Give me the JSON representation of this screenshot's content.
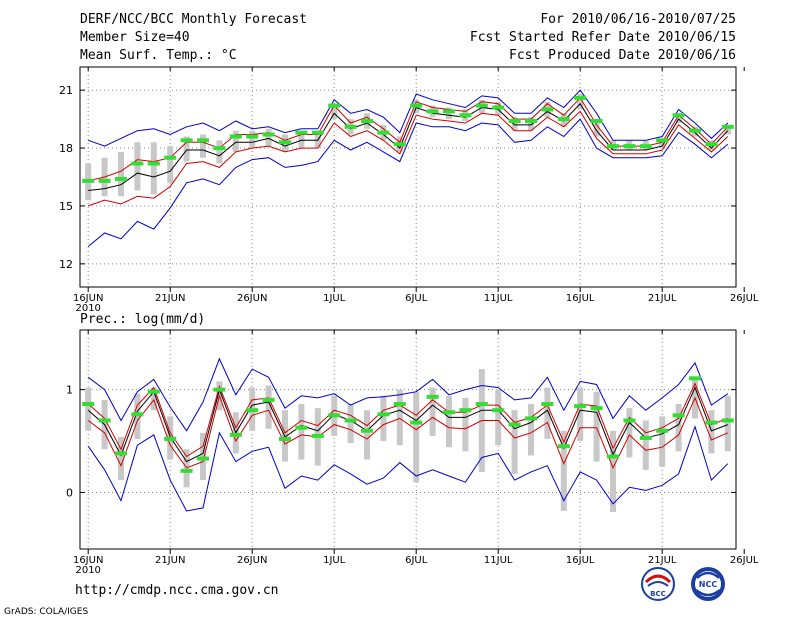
{
  "header": {
    "title": "DERF/NCC/BCC Monthly Forecast",
    "member_size": "Member Size=40",
    "variable": "Mean Surf. Temp.: °C",
    "period": "For 2010/06/16-2010/07/25",
    "started": "Fcst Started Refer Date 2010/06/15",
    "produced": "Fcst Produced Date 2010/06/16"
  },
  "footer": {
    "url": "http://cmdp.ncc.cma.gov.cn",
    "credit": "GrADS: COLA/IGES",
    "logo_bcc_text": "BCC",
    "logo_ncc_text": "NCC"
  },
  "colors": {
    "ensemble_mean": "#000000",
    "bounds_inner": "#d00000",
    "bounds_outer": "#0000cc",
    "spread_bar": "#c8c8c8",
    "member_mark": "#33dd33",
    "grid": "#888888"
  },
  "chart_data": [
    {
      "type": "line",
      "title": "Mean Surf. Temp.: °C",
      "xlabel": "",
      "ylabel": "°C",
      "ylim": [
        10.8,
        22.2
      ],
      "yticks": [
        12,
        15,
        18,
        21
      ],
      "xlim": [
        0.5,
        40.5
      ],
      "xticks": [
        {
          "day": 1,
          "label": "16JUN",
          "sub": "2010"
        },
        {
          "day": 6,
          "label": "21JUN"
        },
        {
          "day": 11,
          "label": "26JUN"
        },
        {
          "day": 16,
          "label": "1JUL"
        },
        {
          "day": 21,
          "label": "6JUL"
        },
        {
          "day": 26,
          "label": "11JUL"
        },
        {
          "day": 31,
          "label": "16JUL"
        },
        {
          "day": 36,
          "label": "21JUL"
        },
        {
          "day": 41,
          "label": "26JUL"
        }
      ],
      "x": [
        1,
        2,
        3,
        4,
        5,
        6,
        7,
        8,
        9,
        10,
        11,
        12,
        13,
        14,
        15,
        16,
        17,
        18,
        19,
        20,
        21,
        22,
        23,
        24,
        25,
        26,
        27,
        28,
        29,
        30,
        31,
        32,
        33,
        34,
        35,
        36,
        37,
        38,
        39,
        40
      ],
      "series": [
        {
          "name": "mean",
          "values": [
            15.8,
            15.9,
            16.1,
            16.7,
            16.5,
            16.8,
            17.9,
            17.9,
            17.6,
            18.3,
            18.3,
            18.5,
            18.1,
            18.4,
            18.4,
            19.8,
            19.0,
            19.3,
            18.7,
            18.0,
            20.1,
            19.8,
            19.7,
            19.6,
            20.1,
            20.0,
            19.2,
            19.2,
            19.9,
            19.4,
            20.3,
            18.9,
            17.9,
            17.9,
            17.9,
            18.1,
            19.5,
            18.8,
            18.0,
            18.9
          ]
        },
        {
          "name": "upper_inner",
          "values": [
            16.3,
            16.5,
            16.8,
            17.4,
            17.3,
            17.5,
            18.3,
            18.3,
            18.0,
            18.7,
            18.7,
            18.8,
            18.4,
            18.7,
            18.7,
            20.2,
            19.3,
            19.6,
            19.0,
            18.3,
            20.4,
            20.1,
            20.0,
            19.9,
            20.4,
            20.3,
            19.5,
            19.5,
            20.3,
            19.7,
            20.6,
            19.2,
            18.1,
            18.1,
            18.1,
            18.3,
            19.7,
            19.0,
            18.2,
            19.1
          ]
        },
        {
          "name": "lower_inner",
          "values": [
            15.0,
            15.3,
            15.1,
            15.5,
            15.4,
            16.0,
            17.2,
            17.3,
            17.0,
            17.8,
            18.0,
            18.1,
            17.8,
            18.0,
            18.0,
            19.3,
            18.6,
            18.9,
            18.4,
            17.7,
            19.7,
            19.5,
            19.4,
            19.3,
            19.8,
            19.7,
            18.9,
            18.9,
            19.6,
            19.1,
            19.9,
            18.5,
            17.7,
            17.7,
            17.7,
            17.9,
            19.2,
            18.5,
            17.8,
            18.6
          ]
        },
        {
          "name": "upper_outer",
          "values": [
            18.4,
            18.1,
            18.5,
            18.9,
            19.0,
            18.7,
            19.1,
            19.3,
            18.9,
            19.4,
            19.0,
            19.1,
            18.8,
            19.0,
            19.0,
            20.5,
            19.8,
            20.0,
            19.6,
            18.8,
            20.8,
            20.5,
            20.3,
            20.1,
            20.7,
            20.6,
            19.8,
            19.8,
            20.6,
            20.1,
            21.0,
            19.8,
            18.4,
            18.4,
            18.4,
            18.6,
            20.0,
            19.3,
            18.5,
            19.3
          ]
        },
        {
          "name": "lower_outer",
          "values": [
            12.9,
            13.6,
            13.3,
            14.2,
            13.8,
            14.9,
            16.2,
            16.4,
            16.1,
            17.0,
            17.4,
            17.5,
            17.0,
            17.1,
            17.3,
            18.4,
            17.9,
            18.3,
            17.8,
            17.3,
            19.3,
            19.1,
            19.1,
            18.9,
            19.3,
            19.2,
            18.3,
            18.4,
            19.1,
            18.6,
            19.5,
            18.0,
            17.5,
            17.5,
            17.5,
            17.6,
            18.8,
            18.2,
            17.5,
            18.2
          ]
        }
      ],
      "spread_bars": {
        "low": [
          15.3,
          15.5,
          15.5,
          15.8,
          15.6,
          16.2,
          17.3,
          17.5,
          17.2,
          17.8,
          18.0,
          18.1,
          17.8,
          18.0,
          18.0,
          19.5,
          18.7,
          19.0,
          18.4,
          17.8,
          19.8,
          19.6,
          19.5,
          19.4,
          19.8,
          19.7,
          18.9,
          18.9,
          19.6,
          19.1,
          20.0,
          18.6,
          17.9,
          17.9,
          17.9,
          18.0,
          19.3,
          18.6,
          17.9,
          18.7
        ],
        "high": [
          17.2,
          17.5,
          17.8,
          18.3,
          18.3,
          18.1,
          18.6,
          18.7,
          18.4,
          18.9,
          18.9,
          19.0,
          18.7,
          18.9,
          18.9,
          20.3,
          19.5,
          19.8,
          19.2,
          18.6,
          20.5,
          20.2,
          20.1,
          20.0,
          20.5,
          20.4,
          19.6,
          19.6,
          20.4,
          19.8,
          20.8,
          19.4,
          18.4,
          18.4,
          18.4,
          18.5,
          19.8,
          19.1,
          18.4,
          19.2
        ]
      },
      "markers": [
        16.3,
        16.3,
        16.4,
        17.2,
        17.2,
        17.5,
        18.4,
        18.4,
        18.0,
        18.6,
        18.6,
        18.7,
        18.3,
        18.8,
        18.8,
        20.2,
        19.1,
        19.4,
        18.8,
        18.2,
        20.2,
        19.9,
        19.9,
        19.7,
        20.2,
        20.1,
        19.4,
        19.4,
        20.0,
        19.5,
        20.6,
        19.4,
        18.1,
        18.1,
        18.1,
        18.4,
        19.7,
        18.9,
        18.2,
        19.1
      ]
    },
    {
      "type": "line",
      "title": "Prec.: log(mm/d)",
      "xlabel": "",
      "ylabel": "log(mm/d)",
      "ylim": [
        -0.55,
        1.58
      ],
      "yticks": [
        0,
        1
      ],
      "xlim": [
        0.5,
        40.5
      ],
      "xticks": [
        {
          "day": 1,
          "label": "16JUN",
          "sub": "2010"
        },
        {
          "day": 6,
          "label": "21JUN"
        },
        {
          "day": 11,
          "label": "26JUN"
        },
        {
          "day": 16,
          "label": "1JUL"
        },
        {
          "day": 21,
          "label": "6JUL"
        },
        {
          "day": 26,
          "label": "11JUL"
        },
        {
          "day": 31,
          "label": "16JUL"
        },
        {
          "day": 36,
          "label": "21JUL"
        },
        {
          "day": 41,
          "label": "26JUL"
        }
      ],
      "x": [
        1,
        2,
        3,
        4,
        5,
        6,
        7,
        8,
        9,
        10,
        11,
        12,
        13,
        14,
        15,
        16,
        17,
        18,
        19,
        20,
        21,
        22,
        23,
        24,
        25,
        26,
        27,
        28,
        29,
        30,
        31,
        32,
        33,
        34,
        35,
        36,
        37,
        38,
        39,
        40
      ],
      "series": [
        {
          "name": "mean",
          "values": [
            0.8,
            0.66,
            0.36,
            0.79,
            0.98,
            0.54,
            0.3,
            0.38,
            1.0,
            0.58,
            0.85,
            0.88,
            0.54,
            0.65,
            0.6,
            0.76,
            0.7,
            0.6,
            0.75,
            0.8,
            0.7,
            0.85,
            0.73,
            0.73,
            0.8,
            0.8,
            0.62,
            0.68,
            0.8,
            0.43,
            0.8,
            0.78,
            0.37,
            0.68,
            0.53,
            0.57,
            0.66,
            1.02,
            0.6,
            0.66
          ]
        },
        {
          "name": "upper_inner",
          "values": [
            0.86,
            0.72,
            0.42,
            0.85,
            1.02,
            0.58,
            0.35,
            0.45,
            1.03,
            0.63,
            0.9,
            0.92,
            0.58,
            0.7,
            0.65,
            0.8,
            0.75,
            0.65,
            0.8,
            0.85,
            0.75,
            0.9,
            0.78,
            0.78,
            0.85,
            0.85,
            0.68,
            0.73,
            0.85,
            0.49,
            0.86,
            0.84,
            0.43,
            0.73,
            0.58,
            0.63,
            0.72,
            1.06,
            0.66,
            0.72
          ]
        },
        {
          "name": "lower_inner",
          "values": [
            0.7,
            0.58,
            0.26,
            0.7,
            0.9,
            0.46,
            0.24,
            0.3,
            0.94,
            0.5,
            0.75,
            0.8,
            0.47,
            0.56,
            0.54,
            0.66,
            0.61,
            0.52,
            0.66,
            0.72,
            0.61,
            0.73,
            0.63,
            0.62,
            0.7,
            0.7,
            0.53,
            0.58,
            0.68,
            0.28,
            0.63,
            0.63,
            0.24,
            0.56,
            0.41,
            0.44,
            0.56,
            0.92,
            0.51,
            0.58
          ]
        },
        {
          "name": "upper_outer",
          "values": [
            1.12,
            1.0,
            0.7,
            0.98,
            1.1,
            0.83,
            0.6,
            0.88,
            1.3,
            0.95,
            1.2,
            1.12,
            0.82,
            0.94,
            0.92,
            0.96,
            0.85,
            0.92,
            0.93,
            0.95,
            0.98,
            1.1,
            0.95,
            1.0,
            1.04,
            1.02,
            0.9,
            0.92,
            1.12,
            0.8,
            1.08,
            1.05,
            0.72,
            0.94,
            0.8,
            0.92,
            1.05,
            1.26,
            0.85,
            0.96
          ]
        },
        {
          "name": "lower_outer",
          "values": [
            0.45,
            0.22,
            -0.08,
            0.46,
            0.56,
            0.12,
            -0.18,
            -0.15,
            0.58,
            0.3,
            0.4,
            0.44,
            0.04,
            0.16,
            0.12,
            0.27,
            0.18,
            0.08,
            0.14,
            0.29,
            0.16,
            0.22,
            0.16,
            0.1,
            0.34,
            0.38,
            0.12,
            0.2,
            0.26,
            -0.08,
            0.2,
            0.12,
            -0.11,
            0.05,
            0.02,
            0.07,
            0.18,
            0.64,
            0.12,
            0.28
          ]
        }
      ],
      "spread_bars": {
        "low": [
          0.6,
          0.42,
          0.12,
          0.52,
          0.8,
          0.32,
          0.05,
          0.12,
          0.8,
          0.38,
          0.6,
          0.62,
          0.3,
          0.32,
          0.26,
          0.55,
          0.48,
          0.32,
          0.5,
          0.46,
          0.1,
          0.55,
          0.44,
          0.4,
          0.2,
          0.46,
          0.18,
          0.36,
          0.52,
          -0.18,
          0.5,
          0.3,
          -0.19,
          0.34,
          0.22,
          0.25,
          0.4,
          0.72,
          0.38,
          0.4
        ],
        "high": [
          1.02,
          0.9,
          0.54,
          0.96,
          1.02,
          0.74,
          0.42,
          0.58,
          1.08,
          0.78,
          1.02,
          1.04,
          0.8,
          0.86,
          0.82,
          0.94,
          0.86,
          0.8,
          0.94,
          1.0,
          0.98,
          1.02,
          0.94,
          0.92,
          1.2,
          1.0,
          0.8,
          0.86,
          1.02,
          0.6,
          1.02,
          0.98,
          0.6,
          0.82,
          0.7,
          0.74,
          0.86,
          1.1,
          0.8,
          0.94
        ]
      },
      "markers": [
        0.86,
        0.7,
        0.38,
        0.76,
        0.98,
        0.52,
        0.21,
        0.33,
        1.0,
        0.56,
        0.8,
        0.9,
        0.52,
        0.63,
        0.55,
        0.75,
        0.7,
        0.6,
        0.76,
        0.86,
        0.68,
        0.93,
        0.78,
        0.8,
        0.86,
        0.8,
        0.66,
        0.72,
        0.86,
        0.45,
        0.84,
        0.82,
        0.35,
        0.7,
        0.53,
        0.6,
        0.75,
        1.11,
        0.68,
        0.7
      ]
    }
  ]
}
